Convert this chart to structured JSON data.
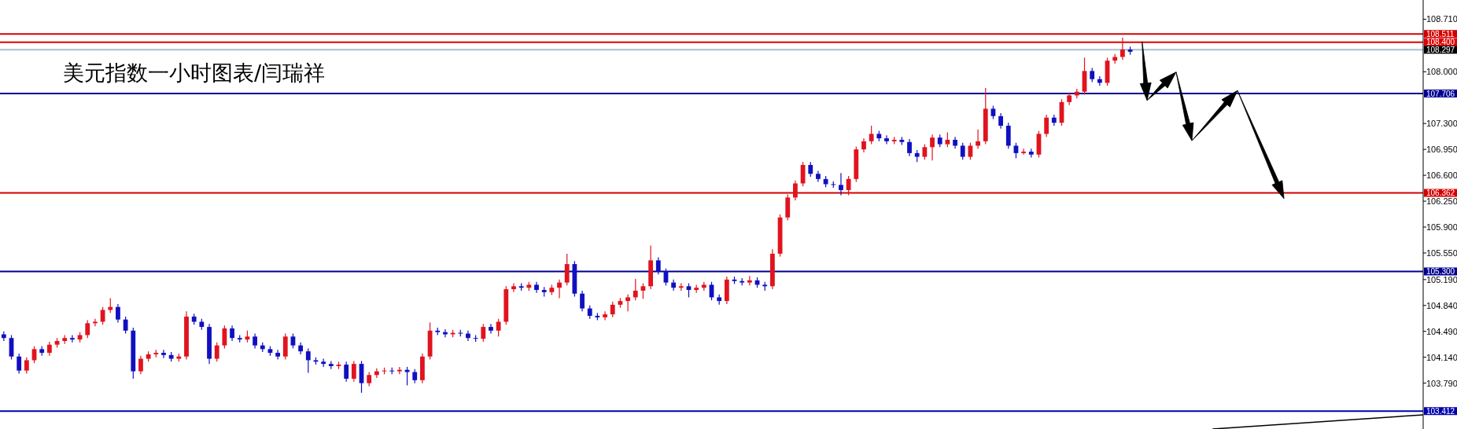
{
  "chart_data": {
    "type": "candlestick",
    "title": "美元指数一小时图表/闫瑞祥",
    "categories": [
      null,
      null,
      null,
      null,
      null,
      null,
      null,
      null,
      null,
      null,
      null,
      null,
      null,
      null,
      null,
      null,
      null,
      null,
      null,
      null,
      null,
      null,
      null,
      null,
      null,
      null,
      null,
      null,
      null,
      null,
      null,
      null,
      null,
      null,
      null,
      null,
      null,
      null,
      null,
      null,
      null,
      null,
      null,
      null,
      null,
      null,
      null,
      null,
      null,
      null,
      null,
      null,
      null,
      null,
      null,
      null,
      null,
      null,
      null,
      null,
      null,
      null,
      null,
      null,
      null,
      null,
      null,
      null,
      null,
      null,
      null,
      null,
      null,
      null,
      null,
      null,
      null,
      null,
      null,
      null,
      null,
      null,
      null,
      null,
      null,
      null,
      null,
      null,
      null,
      null,
      null,
      null,
      null,
      null,
      null,
      null,
      null,
      null,
      null,
      null,
      null,
      null,
      null,
      null,
      null,
      null,
      null,
      null,
      null,
      null,
      null,
      null,
      null,
      null,
      null,
      null,
      null,
      null,
      null,
      null,
      null,
      null,
      null,
      null,
      null,
      null,
      null,
      null,
      null,
      null,
      null,
      null,
      null,
      null,
      null,
      null,
      null,
      null,
      null,
      null,
      null,
      null,
      null,
      null,
      null,
      null,
      null,
      null,
      null,
      null,
      null,
      null,
      null,
      null,
      null,
      null,
      null,
      null,
      null,
      null,
      null,
      null,
      null,
      null,
      null,
      null,
      null,
      null,
      null,
      null,
      null,
      null,
      null,
      null,
      null,
      null,
      null,
      null,
      null,
      null,
      null,
      null,
      null,
      null,
      null,
      null,
      null
    ],
    "ohlc": [
      [
        104.45,
        104.49,
        104.36,
        104.4
      ],
      [
        104.4,
        104.44,
        104.11,
        104.15
      ],
      [
        104.15,
        104.19,
        103.92,
        103.96
      ],
      [
        103.96,
        104.14,
        103.92,
        104.1
      ],
      [
        104.1,
        104.29,
        104.06,
        104.25
      ],
      [
        104.25,
        104.29,
        104.16,
        104.2
      ],
      [
        104.2,
        104.35,
        104.16,
        104.31
      ],
      [
        104.31,
        104.4,
        104.27,
        104.36
      ],
      [
        104.36,
        104.44,
        104.32,
        104.4
      ],
      [
        104.4,
        104.44,
        104.34,
        104.38
      ],
      [
        104.38,
        104.48,
        104.34,
        104.44
      ],
      [
        104.44,
        104.64,
        104.4,
        104.6
      ],
      [
        104.6,
        104.66,
        104.56,
        104.62
      ],
      [
        104.62,
        104.82,
        104.58,
        104.78
      ],
      [
        104.78,
        104.94,
        104.74,
        104.82
      ],
      [
        104.82,
        104.86,
        104.61,
        104.65
      ],
      [
        104.65,
        104.69,
        104.46,
        104.5
      ],
      [
        104.5,
        104.54,
        103.85,
        103.95
      ],
      [
        103.95,
        104.16,
        103.91,
        104.12
      ],
      [
        104.12,
        104.22,
        104.08,
        104.18
      ],
      [
        104.18,
        104.24,
        104.14,
        104.2
      ],
      [
        104.2,
        104.24,
        104.13,
        104.17
      ],
      [
        104.17,
        104.21,
        104.08,
        104.12
      ],
      [
        104.12,
        104.19,
        104.08,
        104.15
      ],
      [
        104.15,
        104.76,
        104.11,
        104.69
      ],
      [
        104.69,
        104.73,
        104.58,
        104.62
      ],
      [
        104.62,
        104.66,
        104.51,
        104.55
      ],
      [
        104.55,
        104.59,
        104.05,
        104.12
      ],
      [
        104.12,
        104.34,
        104.08,
        104.3
      ],
      [
        104.3,
        104.57,
        104.26,
        104.53
      ],
      [
        104.53,
        104.57,
        104.36,
        104.4
      ],
      [
        104.4,
        104.44,
        104.34,
        104.38
      ],
      [
        104.38,
        104.5,
        104.34,
        104.42
      ],
      [
        104.42,
        104.46,
        104.26,
        104.3
      ],
      [
        104.3,
        104.34,
        104.21,
        104.25
      ],
      [
        104.25,
        104.29,
        104.16,
        104.2
      ],
      [
        104.2,
        104.24,
        104.11,
        104.15
      ],
      [
        104.15,
        104.46,
        104.11,
        104.42
      ],
      [
        104.42,
        104.46,
        104.26,
        104.3
      ],
      [
        104.3,
        104.34,
        104.18,
        104.22
      ],
      [
        104.22,
        104.26,
        103.93,
        104.1
      ],
      [
        104.1,
        104.14,
        104.04,
        104.08
      ],
      [
        104.08,
        104.12,
        104.01,
        104.05
      ],
      [
        104.05,
        104.09,
        103.98,
        104.02
      ],
      [
        104.02,
        104.08,
        103.98,
        104.04
      ],
      [
        104.04,
        104.08,
        103.81,
        103.85
      ],
      [
        103.85,
        104.09,
        103.81,
        104.05
      ],
      [
        104.05,
        104.09,
        103.66,
        103.79
      ],
      [
        103.79,
        103.94,
        103.75,
        103.9
      ],
      [
        103.9,
        103.99,
        103.86,
        103.95
      ],
      [
        103.95,
        104.0,
        103.91,
        103.96
      ],
      [
        103.96,
        104.0,
        103.91,
        103.95
      ],
      [
        103.95,
        104.01,
        103.91,
        103.97
      ],
      [
        103.97,
        104.01,
        103.76,
        103.94
      ],
      [
        103.94,
        103.98,
        103.79,
        103.83
      ],
      [
        103.83,
        104.19,
        103.79,
        104.15
      ],
      [
        104.15,
        104.61,
        104.11,
        104.5
      ],
      [
        104.5,
        104.54,
        104.44,
        104.48
      ],
      [
        104.48,
        104.52,
        104.41,
        104.45
      ],
      [
        104.45,
        104.51,
        104.41,
        104.47
      ],
      [
        104.47,
        104.51,
        104.42,
        104.46
      ],
      [
        104.46,
        104.5,
        104.36,
        104.4
      ],
      [
        104.4,
        104.44,
        104.35,
        104.39
      ],
      [
        104.39,
        104.59,
        104.35,
        104.55
      ],
      [
        104.55,
        104.59,
        104.46,
        104.5
      ],
      [
        104.5,
        104.66,
        104.42,
        104.62
      ],
      [
        104.62,
        105.1,
        104.58,
        105.06
      ],
      [
        105.06,
        105.14,
        105.02,
        105.1
      ],
      [
        105.1,
        105.14,
        105.04,
        105.08
      ],
      [
        105.08,
        105.16,
        105.04,
        105.12
      ],
      [
        105.12,
        105.16,
        105.01,
        105.05
      ],
      [
        105.05,
        105.09,
        104.96,
        105.02
      ],
      [
        105.02,
        105.12,
        104.98,
        105.08
      ],
      [
        105.08,
        105.19,
        104.94,
        105.15
      ],
      [
        105.15,
        105.54,
        105.11,
        105.4
      ],
      [
        105.4,
        105.44,
        104.96,
        105.0
      ],
      [
        105.0,
        105.04,
        104.76,
        104.8
      ],
      [
        104.8,
        104.84,
        104.66,
        104.7
      ],
      [
        104.7,
        104.74,
        104.64,
        104.68
      ],
      [
        104.68,
        104.76,
        104.64,
        104.72
      ],
      [
        104.72,
        104.89,
        104.68,
        104.85
      ],
      [
        104.85,
        104.94,
        104.81,
        104.9
      ],
      [
        104.9,
        104.99,
        104.76,
        104.95
      ],
      [
        104.95,
        105.2,
        104.91,
        105.04
      ],
      [
        105.04,
        105.14,
        104.93,
        105.1
      ],
      [
        105.1,
        105.65,
        105.06,
        105.45
      ],
      [
        105.45,
        105.49,
        105.26,
        105.3
      ],
      [
        105.3,
        105.34,
        105.11,
        105.15
      ],
      [
        105.15,
        105.19,
        105.04,
        105.08
      ],
      [
        105.08,
        105.14,
        105.04,
        105.1
      ],
      [
        105.1,
        105.14,
        104.95,
        105.05
      ],
      [
        105.05,
        105.12,
        105.01,
        105.08
      ],
      [
        105.08,
        105.16,
        105.04,
        105.12
      ],
      [
        105.12,
        105.16,
        104.91,
        104.95
      ],
      [
        104.95,
        104.99,
        104.85,
        104.9
      ],
      [
        104.9,
        105.23,
        104.86,
        105.19
      ],
      [
        105.19,
        105.23,
        105.13,
        105.17
      ],
      [
        105.17,
        105.21,
        105.11,
        105.15
      ],
      [
        105.15,
        105.24,
        105.11,
        105.18
      ],
      [
        105.18,
        105.22,
        105.08,
        105.12
      ],
      [
        105.12,
        105.16,
        105.04,
        105.1
      ],
      [
        105.1,
        105.6,
        105.06,
        105.54
      ],
      [
        105.54,
        106.07,
        105.5,
        106.03
      ],
      [
        106.03,
        106.34,
        105.99,
        106.3
      ],
      [
        106.3,
        106.53,
        106.26,
        106.49
      ],
      [
        106.49,
        106.78,
        106.45,
        106.74
      ],
      [
        106.74,
        106.78,
        106.58,
        106.62
      ],
      [
        106.62,
        106.66,
        106.51,
        106.55
      ],
      [
        106.55,
        106.59,
        106.44,
        106.48
      ],
      [
        106.48,
        106.52,
        106.43,
        106.47
      ],
      [
        106.47,
        106.63,
        106.33,
        106.4
      ],
      [
        106.4,
        106.59,
        106.33,
        106.55
      ],
      [
        106.55,
        106.99,
        106.51,
        106.95
      ],
      [
        106.95,
        107.1,
        106.91,
        107.06
      ],
      [
        107.06,
        107.27,
        107.02,
        107.16
      ],
      [
        107.16,
        107.2,
        107.06,
        107.1
      ],
      [
        107.1,
        107.14,
        107.02,
        107.06
      ],
      [
        107.06,
        107.12,
        107.02,
        107.08
      ],
      [
        107.08,
        107.12,
        107.01,
        107.05
      ],
      [
        107.05,
        107.09,
        106.86,
        106.9
      ],
      [
        106.9,
        106.94,
        106.78,
        106.85
      ],
      [
        106.85,
        107.02,
        106.81,
        106.98
      ],
      [
        106.98,
        107.15,
        106.8,
        107.11
      ],
      [
        107.11,
        107.15,
        106.98,
        107.02
      ],
      [
        107.02,
        107.18,
        106.98,
        107.08
      ],
      [
        107.08,
        107.12,
        106.96,
        107.0
      ],
      [
        107.0,
        107.04,
        106.81,
        106.85
      ],
      [
        106.85,
        107.04,
        106.81,
        107.0
      ],
      [
        107.0,
        107.22,
        106.96,
        107.06
      ],
      [
        107.06,
        107.78,
        107.02,
        107.5
      ],
      [
        107.5,
        107.54,
        107.36,
        107.4
      ],
      [
        107.4,
        107.44,
        107.23,
        107.27
      ],
      [
        107.27,
        107.31,
        106.96,
        107.0
      ],
      [
        107.0,
        107.04,
        106.83,
        106.9
      ],
      [
        106.9,
        106.96,
        106.88,
        106.92
      ],
      [
        106.92,
        106.96,
        106.84,
        106.88
      ],
      [
        106.88,
        107.2,
        106.84,
        107.16
      ],
      [
        107.16,
        107.42,
        107.12,
        107.38
      ],
      [
        107.38,
        107.42,
        107.27,
        107.31
      ],
      [
        107.31,
        107.63,
        107.27,
        107.59
      ],
      [
        107.59,
        107.72,
        107.55,
        107.68
      ],
      [
        107.68,
        107.77,
        107.64,
        107.73
      ],
      [
        107.73,
        108.19,
        107.69,
        108.01
      ],
      [
        108.01,
        108.05,
        107.86,
        107.9
      ],
      [
        107.9,
        107.94,
        107.81,
        107.85
      ],
      [
        107.85,
        108.19,
        107.81,
        108.15
      ],
      [
        108.15,
        108.24,
        108.11,
        108.2
      ],
      [
        108.2,
        108.46,
        108.16,
        108.3
      ],
      [
        108.3,
        108.34,
        108.23,
        108.27
      ],
      null,
      null,
      null,
      null,
      null,
      null,
      null,
      null,
      null,
      null,
      null,
      null,
      null,
      null,
      null,
      null,
      null,
      null,
      null,
      null,
      null,
      null,
      null,
      null,
      null,
      null,
      null,
      null,
      null,
      null,
      null,
      null,
      null,
      null,
      null,
      null,
      null,
      null
    ],
    "ylim": [
      103.17,
      108.97
    ],
    "yticks": [
      {
        "value": 108.71,
        "label": "108.710"
      },
      {
        "value": 108.0,
        "label": "108.000"
      },
      {
        "value": 107.3,
        "label": "107.300"
      },
      {
        "value": 106.95,
        "label": "106.950"
      },
      {
        "value": 106.6,
        "label": "106.600"
      },
      {
        "value": 106.25,
        "label": "106.250"
      },
      {
        "value": 105.9,
        "label": "105.900"
      },
      {
        "value": 105.55,
        "label": "105.550"
      },
      {
        "value": 105.19,
        "label": "105.190"
      },
      {
        "value": 104.84,
        "label": "104.840"
      },
      {
        "value": 104.49,
        "label": "104.490"
      },
      {
        "value": 104.14,
        "label": "104.140"
      },
      {
        "value": 103.79,
        "label": "103.790"
      }
    ],
    "tick_labels": "y",
    "ref_lines": [
      {
        "axis": "y",
        "value": 108.511,
        "label": "108.511",
        "color": "#d40000"
      },
      {
        "axis": "y",
        "value": 108.4,
        "label": "108.400",
        "color": "#e00000"
      },
      {
        "axis": "y",
        "value": 108.297,
        "label": "108.297",
        "color": "#a9bfcf"
      },
      {
        "axis": "y",
        "value": 107.706,
        "label": "107.706",
        "color": "#000090"
      },
      {
        "axis": "y",
        "value": 106.362,
        "label": "106.362",
        "color": "#d40000"
      },
      {
        "axis": "y",
        "value": 105.3,
        "label": "105.300",
        "color": "#000090"
      },
      {
        "axis": "y",
        "value": 103.412,
        "label": "103.412",
        "color": "#0000b0"
      }
    ]
  }
}
